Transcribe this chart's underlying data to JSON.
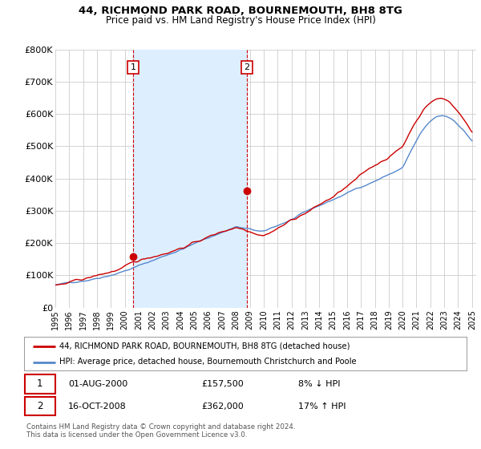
{
  "title1": "44, RICHMOND PARK ROAD, BOURNEMOUTH, BH8 8TG",
  "title2": "Price paid vs. HM Land Registry's House Price Index (HPI)",
  "ylim": [
    0,
    800000
  ],
  "yticks": [
    0,
    100000,
    200000,
    300000,
    400000,
    500000,
    600000,
    700000,
    800000
  ],
  "ytick_labels": [
    "£0",
    "£100K",
    "£200K",
    "£300K",
    "£400K",
    "£500K",
    "£600K",
    "£700K",
    "£800K"
  ],
  "hpi_color": "#5588cc",
  "price_color": "#cc0000",
  "grid_color": "#cccccc",
  "shade_color": "#ddeeff",
  "bg_color": "#ffffff",
  "legend_line1": "44, RICHMOND PARK ROAD, BOURNEMOUTH, BH8 8TG (detached house)",
  "legend_line2": "HPI: Average price, detached house, Bournemouth Christchurch and Poole",
  "annotation1_year": 2000.6,
  "annotation1_value": 157500,
  "annotation1_text": "01-AUG-2000",
  "annotation1_price": "£157,500",
  "annotation1_pct": "8% ↓ HPI",
  "annotation2_year": 2008.8,
  "annotation2_value": 362000,
  "annotation2_text": "16-OCT-2008",
  "annotation2_price": "£362,000",
  "annotation2_pct": "17% ↑ HPI",
  "footer": "Contains HM Land Registry data © Crown copyright and database right 2024.\nThis data is licensed under the Open Government Licence v3.0.",
  "xtick_years": [
    1995,
    1996,
    1997,
    1998,
    1999,
    2000,
    2001,
    2002,
    2003,
    2004,
    2005,
    2006,
    2007,
    2008,
    2009,
    2010,
    2011,
    2012,
    2013,
    2014,
    2015,
    2016,
    2017,
    2018,
    2019,
    2020,
    2021,
    2022,
    2023,
    2024,
    2025
  ]
}
